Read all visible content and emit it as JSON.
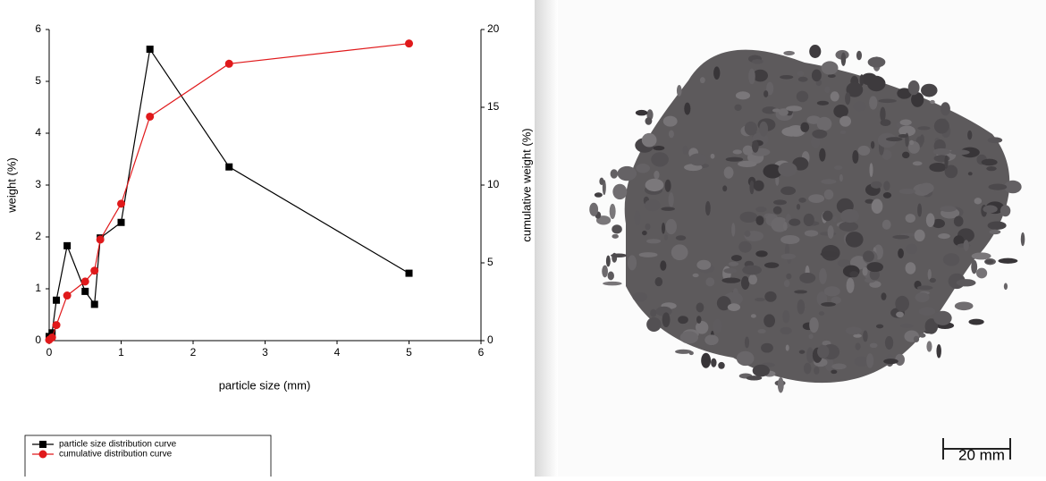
{
  "chart_data": {
    "type": "line",
    "xlabel": "particle size (mm)",
    "ylabel": "weight (%)",
    "y2label": "cumulative weight (%)",
    "x": [
      0,
      0.04,
      0.1,
      0.25,
      0.5,
      0.63,
      0.71,
      1.0,
      1.4,
      2.5,
      5
    ],
    "series": [
      {
        "name": "particle size distribution curve",
        "color": "#000000",
        "marker": "square",
        "values": [
          0.08,
          0.15,
          0.78,
          1.83,
          0.95,
          0.7,
          1.98,
          2.28,
          5.62,
          3.35,
          1.3
        ]
      },
      {
        "name": "cumulative distribution curve",
        "color": "#e0191b",
        "marker": "circle",
        "axis": "y2",
        "values": [
          0.05,
          0.2,
          1,
          2.9,
          3.8,
          4.5,
          6.5,
          8.8,
          14.4,
          17.8,
          19.1
        ]
      }
    ],
    "xlim": [
      0,
      6
    ],
    "xticks": [
      0,
      1,
      2,
      3,
      4,
      5,
      6
    ],
    "ylim": [
      0,
      6
    ],
    "yticks": [
      0,
      1,
      2,
      3,
      4,
      5,
      6
    ],
    "y2lim": [
      0,
      20
    ],
    "y2ticks": [
      0,
      5,
      10,
      15,
      20
    ],
    "legend": "bottom-left"
  },
  "image": {
    "scale_bar": "20 mm"
  }
}
